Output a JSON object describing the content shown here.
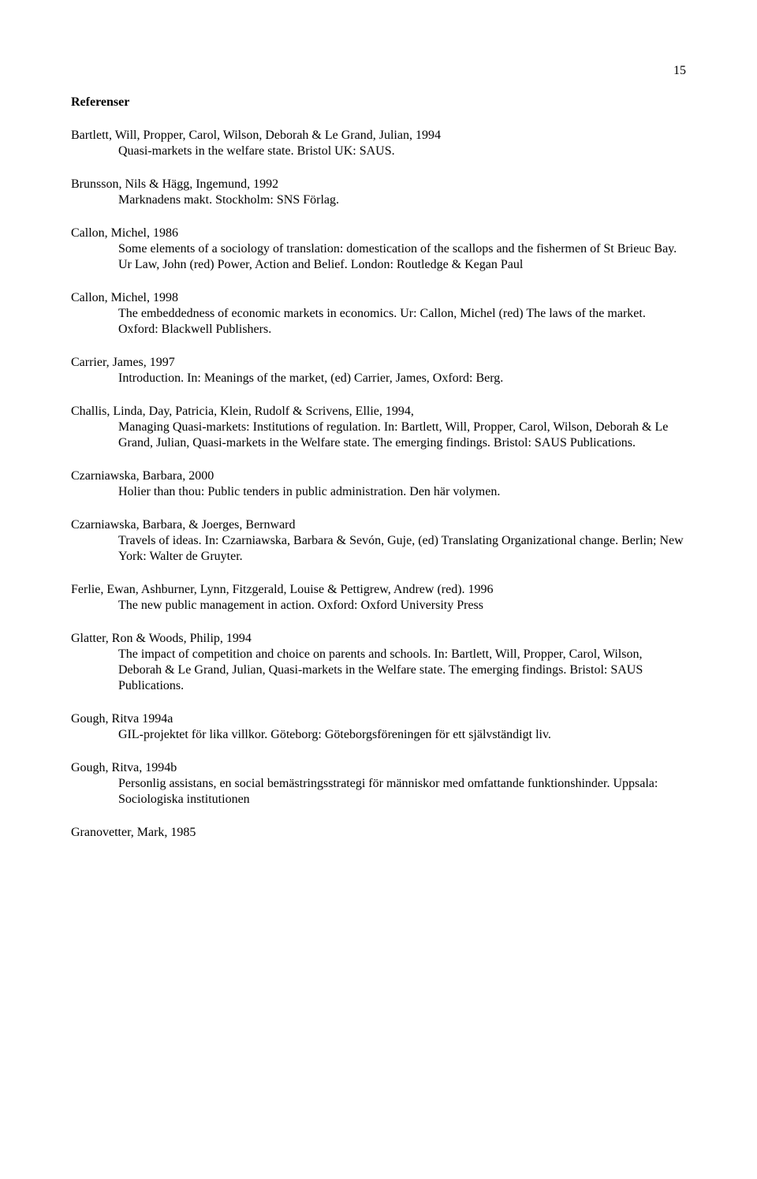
{
  "page_number": "15",
  "heading": "Referenser",
  "refs": [
    {
      "author": "Bartlett, Will, Propper, Carol, Wilson, Deborah & Le Grand, Julian, 1994",
      "desc": "Quasi-markets in the welfare state. Bristol UK: SAUS."
    },
    {
      "author": "Brunsson, Nils & Hägg, Ingemund, 1992",
      "desc": "Marknadens makt. Stockholm: SNS Förlag."
    },
    {
      "author": "Callon, Michel, 1986",
      "desc": "Some elements of a sociology of translation: domestication of the scallops and the fishermen of St Brieuc Bay. Ur Law, John (red) Power, Action and Belief. London: Routledge & Kegan Paul"
    },
    {
      "author": "Callon, Michel, 1998",
      "desc": "The embeddedness of economic markets in economics. Ur: Callon, Michel (red) The laws of the market. Oxford: Blackwell Publishers."
    },
    {
      "author": "Carrier, James, 1997",
      "desc": "Introduction. In: Meanings of the market, (ed) Carrier, James, Oxford: Berg."
    },
    {
      "author": "Challis, Linda, Day, Patricia, Klein, Rudolf & Scrivens, Ellie, 1994,",
      "desc": "Managing Quasi-markets: Institutions of regulation. In: Bartlett, Will, Propper, Carol, Wilson, Deborah & Le Grand, Julian, Quasi-markets in the Welfare state. The emerging findings. Bristol: SAUS Publications."
    },
    {
      "author": "Czarniawska, Barbara, 2000",
      "desc": "Holier than thou: Public tenders in public administration. Den här volymen."
    },
    {
      "author": "Czarniawska, Barbara, & Joerges, Bernward",
      "desc": "Travels of ideas. In: Czarniawska, Barbara & Sevón, Guje, (ed) Translating Organizational change. Berlin; New York: Walter de Gruyter."
    },
    {
      "author": "Ferlie, Ewan, Ashburner, Lynn, Fitzgerald, Louise & Pettigrew, Andrew (red). 1996",
      "desc": "The new public management in action. Oxford: Oxford University Press"
    },
    {
      "author": "Glatter, Ron & Woods, Philip, 1994",
      "desc": "The impact of competition and choice on parents and schools. In: Bartlett, Will, Propper, Carol, Wilson, Deborah & Le Grand, Julian, Quasi-markets in the Welfare state. The emerging findings. Bristol: SAUS Publications."
    },
    {
      "author": "Gough, Ritva 1994a",
      "desc": "GIL-projektet för lika villkor. Göteborg: Göteborgsföreningen för ett självständigt liv."
    },
    {
      "author": "Gough, Ritva, 1994b",
      "desc": "Personlig assistans, en social bemästringsstrategi för människor med omfattande funktionshinder. Uppsala: Sociologiska institutionen"
    },
    {
      "author": "Granovetter, Mark, 1985",
      "desc": ""
    }
  ]
}
